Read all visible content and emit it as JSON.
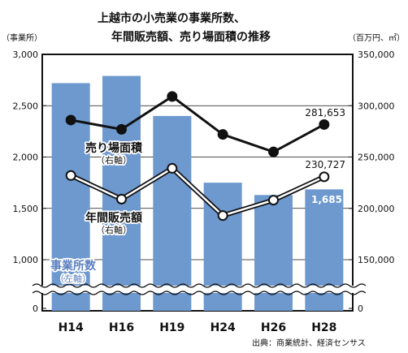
{
  "chart_data": {
    "type": "bar",
    "title_line1": "上越市の小売業の事業所数、",
    "title_line2": "年間販売額、売り場面積の推移",
    "left_unit": "（事業所）",
    "right_unit": "（百万円、㎡）",
    "source": "出典：商業統計、経済センサス",
    "categories": [
      "H14",
      "H16",
      "H19",
      "H24",
      "H26",
      "H28"
    ],
    "left_axis": {
      "ticks": [
        0,
        1000,
        1500,
        2000,
        2500,
        3000
      ],
      "tick_labels": [
        "0",
        "1,000",
        "1,500",
        "2,000",
        "2,500",
        "3,000"
      ],
      "broken": true
    },
    "right_axis": {
      "ticks": [
        0,
        150000,
        200000,
        250000,
        300000,
        350000
      ],
      "tick_labels": [
        "0",
        "150,000",
        "200,000",
        "250,000",
        "300,000",
        "350,000"
      ],
      "broken": true
    },
    "series": [
      {
        "name": "事業所数",
        "axis_note": "（左軸）",
        "kind": "bar",
        "axis": "left",
        "values": [
          2720,
          2790,
          2400,
          1750,
          1630,
          1685
        ],
        "color": "#6d99cf",
        "last_label": "1,685"
      },
      {
        "name": "売り場面積",
        "axis_note": "（右軸）",
        "kind": "line",
        "axis": "right",
        "values": [
          286000,
          277000,
          309000,
          272000,
          255000,
          281653
        ],
        "color": "#111111",
        "marker_fill": "#111111",
        "last_label": "281,653"
      },
      {
        "name": "年間販売額",
        "axis_note": "（右軸）",
        "kind": "line",
        "axis": "right",
        "values": [
          232000,
          209000,
          239000,
          193000,
          208000,
          230727
        ],
        "color": "#111111",
        "marker_fill": "#ffffff",
        "last_label": "230,727"
      }
    ]
  }
}
